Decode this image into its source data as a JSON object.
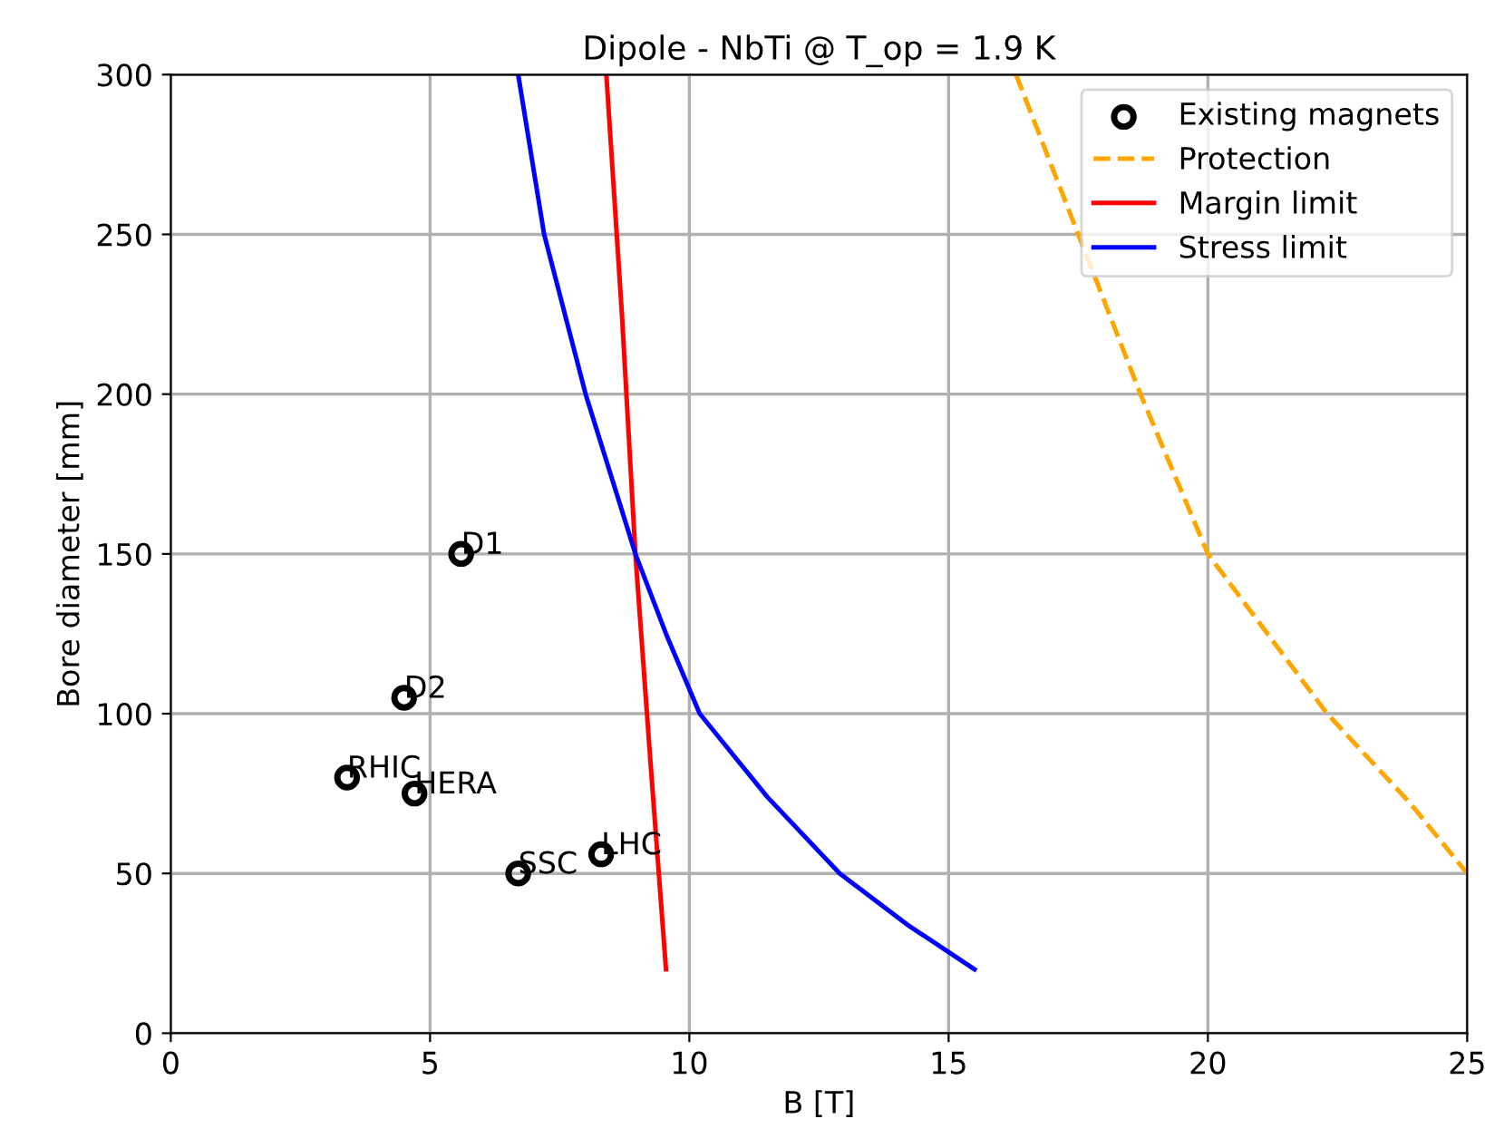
{
  "chart_data": {
    "type": "line",
    "title": "Dipole - NbTi @ T_op = 1.9 K",
    "xlabel": "B [T]",
    "ylabel": "Bore diameter [mm]",
    "xlim": [
      0,
      25
    ],
    "ylim": [
      0,
      300
    ],
    "xticks": [
      0,
      5,
      10,
      15,
      20,
      25
    ],
    "yticks": [
      0,
      50,
      100,
      150,
      200,
      250,
      300
    ],
    "grid": true,
    "legend": "top right",
    "series": [
      {
        "name": "Existing magnets",
        "type": "scatter",
        "marker": "circle",
        "color": "#000000",
        "x": [
          5.6,
          4.5,
          3.4,
          4.7,
          6.7,
          8.3
        ],
        "values": [
          150,
          105,
          80,
          75,
          50,
          56
        ]
      },
      {
        "name": "Protection",
        "line_style": "dashed",
        "color": "#ffa500",
        "x": [
          16.3,
          17.5,
          18.7,
          20.0,
          22.3,
          23.9,
          25.0
        ],
        "values": [
          300,
          250,
          200,
          150,
          100,
          72,
          50
        ]
      },
      {
        "name": "Margin limit",
        "line_style": "solid",
        "color": "#ff0000",
        "x": [
          8.4,
          8.7,
          8.96,
          9.25,
          9.55
        ],
        "values": [
          300,
          225,
          150,
          85,
          20
        ]
      },
      {
        "name": "Stress limit",
        "line_style": "solid",
        "color": "#0000ff",
        "x": [
          6.7,
          7.2,
          8.0,
          8.96,
          9.55,
          10.2,
          11.5,
          12.9,
          14.2,
          15.5
        ],
        "values": [
          300,
          250,
          200,
          150,
          125,
          100,
          74,
          50,
          34,
          20
        ]
      }
    ],
    "annotations": [
      {
        "text": "D1",
        "x": 5.6,
        "y": 150
      },
      {
        "text": "D2",
        "x": 4.5,
        "y": 105
      },
      {
        "text": "RHIC",
        "x": 3.4,
        "y": 80
      },
      {
        "text": "HERA",
        "x": 4.7,
        "y": 75
      },
      {
        "text": "SSC",
        "x": 6.7,
        "y": 50
      },
      {
        "text": "LHC",
        "x": 8.3,
        "y": 56
      }
    ]
  }
}
